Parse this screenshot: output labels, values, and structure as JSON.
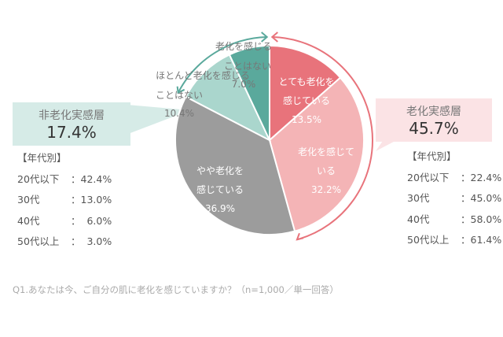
{
  "chart_data": {
    "type": "pie",
    "question": "Q1.あなたは今、ご自分の肌に老化を感じていますか？（n=1,000／単一回答）",
    "slices": [
      {
        "label_lines": [
          "とても老化を",
          "感じている"
        ],
        "value": 13.5,
        "value_label": "13.5%",
        "color": "#e8737b",
        "text_color": "#ffffff"
      },
      {
        "label_lines": [
          "老化を感じて",
          "いる"
        ],
        "value": 32.2,
        "value_label": "32.2%",
        "color": "#f4b4b6",
        "text_color": "#ffffff"
      },
      {
        "label_lines": [
          "やや老化を",
          "感じている"
        ],
        "value": 36.9,
        "value_label": "36.9%",
        "color": "#9c9c9c",
        "text_color": "#ffffff"
      },
      {
        "label_lines": [
          "ほとんど老化を感じる",
          "ことはない"
        ],
        "value": 10.4,
        "value_label": "10.4%",
        "color": "#aad6cd",
        "text_color": "#777777"
      },
      {
        "label_lines": [
          "老化を感じる",
          "ことはない"
        ],
        "value": 7.0,
        "value_label": "7.0%",
        "color": "#5aa99c",
        "text_color": "#777777"
      }
    ],
    "groups": {
      "non_aging": {
        "title": "非老化実感層",
        "value": "17.4%",
        "color": "#d6ebe7",
        "arrow_color": "#5aa99c",
        "age_heading": "【年代別】",
        "ages": [
          {
            "age": "20代以下",
            "value": "：42.4%"
          },
          {
            "age": "30代",
            "value": "：13.0%"
          },
          {
            "age": "40代",
            "value": "：  6.0%"
          },
          {
            "age": "50代以上",
            "value": "：  3.0%"
          }
        ]
      },
      "aging": {
        "title": "老化実感層",
        "value": "45.7%",
        "color": "#fbe3e5",
        "arrow_color": "#e8737b",
        "age_heading": "【年代別】",
        "ages": [
          {
            "age": "20代以下",
            "value": "：22.4%"
          },
          {
            "age": "30代",
            "value": "：45.0%"
          },
          {
            "age": "40代",
            "value": "：58.0%"
          },
          {
            "age": "50代以上",
            "value": "：61.4%"
          }
        ]
      }
    }
  }
}
